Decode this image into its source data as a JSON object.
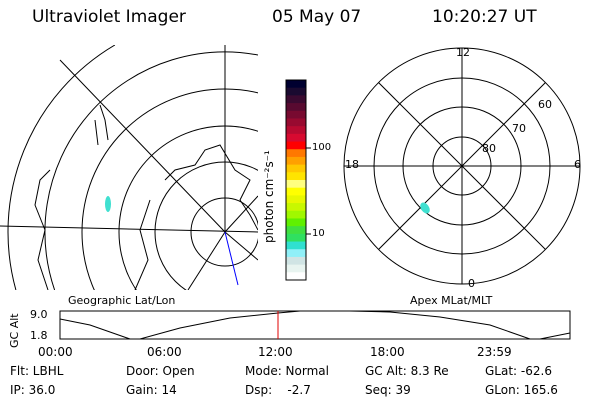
{
  "header": {
    "instrument": "Ultraviolet Imager",
    "date": "05 May 07",
    "time": "10:20:27 UT"
  },
  "colorbar": {
    "label": "photon cm⁻²s⁻¹",
    "ticks": [
      "100",
      "10"
    ],
    "colors": [
      "#000030",
      "#1a0a30",
      "#3a0a30",
      "#580a30",
      "#780a30",
      "#980a30",
      "#b80a30",
      "#d80a30",
      "#ff0000",
      "#ff7800",
      "#ffa000",
      "#ffc800",
      "#ffe400",
      "#ffff80",
      "#ffff00",
      "#e8f800",
      "#c8f800",
      "#a0f800",
      "#60f000",
      "#40e040",
      "#30e060",
      "#30e0d0",
      "#90f0f8",
      "#d0e4e4",
      "#e8f4f0",
      "#ffffff"
    ]
  },
  "left_map": {
    "label": "Geographic Lat/Lon"
  },
  "right_map": {
    "label": "Apex MLat/MLT",
    "mlt_labels": {
      "top": "12",
      "left": "18",
      "right": "6",
      "bottom": "0"
    },
    "lat_labels": [
      "60",
      "70",
      "80"
    ]
  },
  "altitude_plot": {
    "ylabel": "GC Alt",
    "yticks": [
      "9.0",
      "1.8"
    ],
    "xticks": [
      "00:00",
      "06:00",
      "12:00",
      "18:00",
      "23:59"
    ],
    "current_time_color": "#e00000"
  },
  "status": {
    "flt": "Flt: LBHL",
    "ip": "IP: 36.0",
    "door": "Door: Open",
    "gain": "Gain: 14",
    "mode": "Mode: Normal",
    "dsp": "Dsp:    -2.7",
    "gcalt": "GC Alt: 8.3 Re",
    "seq": "Seq: 39",
    "glat": "GLat: -62.6",
    "glon": "GLon: 165.6"
  }
}
